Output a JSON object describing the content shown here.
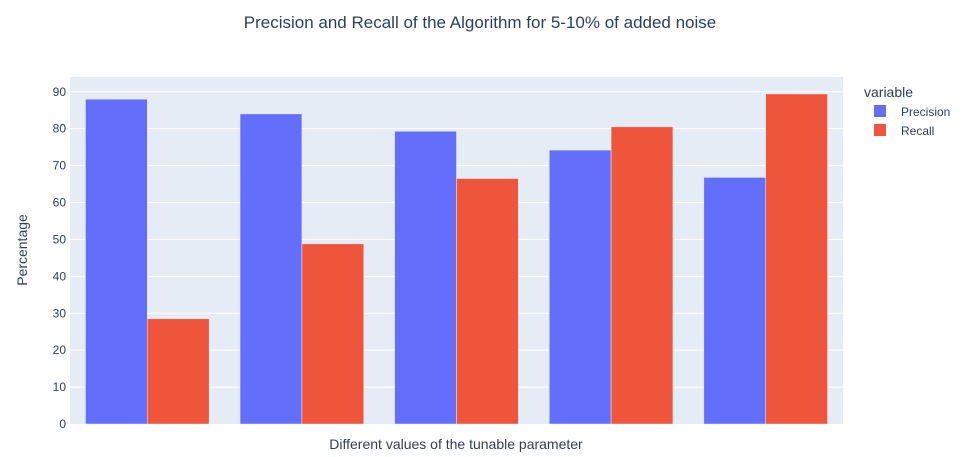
{
  "chart_data": {
    "type": "bar",
    "title": "Precision and Recall of the Algorithm for 5-10% of added noise",
    "xlabel": "Different values of the tunable parameter",
    "ylabel": "Percentage",
    "ylim": [
      0,
      94
    ],
    "yticks": [
      0,
      10,
      20,
      30,
      40,
      50,
      60,
      70,
      80,
      90
    ],
    "categories": [
      "",
      "",
      "",
      "",
      ""
    ],
    "grid": true,
    "legend": {
      "title": "variable",
      "placement": "right"
    },
    "series": [
      {
        "name": "Precision",
        "color": "#636efa",
        "values": [
          88,
          84,
          79.3,
          74.2,
          66.8
        ]
      },
      {
        "name": "Recall",
        "color": "#ef553b",
        "values": [
          28.5,
          48.8,
          66.5,
          80.5,
          89.4
        ]
      }
    ]
  }
}
